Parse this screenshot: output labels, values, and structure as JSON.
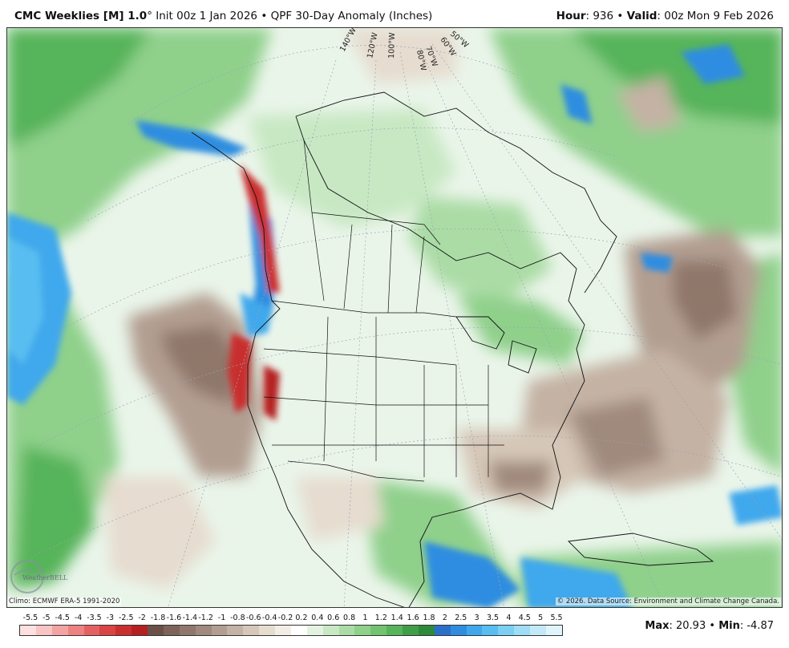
{
  "header": {
    "model": "CMC Weeklies [M] 1.0",
    "degree": "°",
    "init": "Init 00z 1 Jan 2026",
    "bullet": "•",
    "product": "QPF 30-Day Anomaly (Inches)",
    "hour_label": "Hour",
    "hour_value": ": 936",
    "valid_label": "Valid",
    "valid_value": ": 00z Mon 9 Feb 2026"
  },
  "map": {
    "longitude_labels": [
      "140°W",
      "120°W",
      "100°W",
      "80°W",
      "70°W",
      "60°W",
      "50°W"
    ],
    "climo": "Climo: ECMWF ERA-5 1991-2020",
    "credit": "© 2026. Data Source: Environment and Climate Change Canada.",
    "logo_text": "WeatherBELL"
  },
  "colorbar": {
    "labels": [
      "-5.5",
      "-5",
      "-4.5",
      "-4",
      "-3.5",
      "-3",
      "-2.5",
      "-2",
      "-1.8",
      "-1.6",
      "-1.4",
      "-1.2",
      "-1",
      "-0.8",
      "-0.6",
      "-0.4",
      "-0.2",
      "0.2",
      "0.4",
      "0.6",
      "0.8",
      "1",
      "1.2",
      "1.4",
      "1.6",
      "1.8",
      "2",
      "2.5",
      "3",
      "3.5",
      "4",
      "4.5",
      "5",
      "5.5"
    ],
    "colors": [
      "#fde0e0",
      "#f9c4c4",
      "#f4a3a3",
      "#ee8282",
      "#e56161",
      "#d94444",
      "#c92f2f",
      "#b52020",
      "#6b5047",
      "#7d6358",
      "#8f776b",
      "#a08a7e",
      "#b29e91",
      "#c4b2a4",
      "#d6c7b8",
      "#e6dccf",
      "#f3ede5",
      "#ffffff",
      "#e4f3e1",
      "#c8e8c3",
      "#abdca6",
      "#8fd08b",
      "#72c370",
      "#57b45a",
      "#3f9f47",
      "#2d8a3a",
      "#2c6fc9",
      "#2f8de0",
      "#3fa8ec",
      "#58bdf0",
      "#7bcff3",
      "#9fdcf5",
      "#c2e9f8",
      "#e0f5fb"
    ]
  },
  "stats": {
    "max_label": "Max",
    "max_value": ": 20.93",
    "min_label": "Min",
    "min_value": ": -4.87",
    "sep": "•"
  }
}
